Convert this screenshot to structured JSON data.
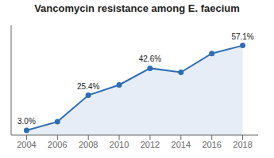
{
  "chart_data": {
    "type": "line",
    "title": "Vancomycin resistance among E. faecium",
    "x": [
      2004,
      2006,
      2008,
      2010,
      2012,
      2014,
      2016,
      2018
    ],
    "values": [
      3.0,
      8.5,
      25.4,
      32.0,
      42.6,
      40.0,
      52.0,
      57.1
    ],
    "color": "#2e6db4",
    "xlim": [
      2003,
      2019
    ],
    "xticks": [
      2004,
      2006,
      2008,
      2010,
      2012,
      2014,
      2016,
      2018
    ],
    "ylim": [
      0,
      70
    ],
    "tick_labels": "x",
    "marker": "circle",
    "annotations": [
      {
        "x": 2004,
        "y": 3.0,
        "text": "3.0%"
      },
      {
        "x": 2008,
        "y": 25.4,
        "text": "25.4%"
      },
      {
        "x": 2012,
        "y": 42.6,
        "text": "42.6%"
      },
      {
        "x": 2018,
        "y": 57.1,
        "text": "57.1%"
      }
    ]
  }
}
